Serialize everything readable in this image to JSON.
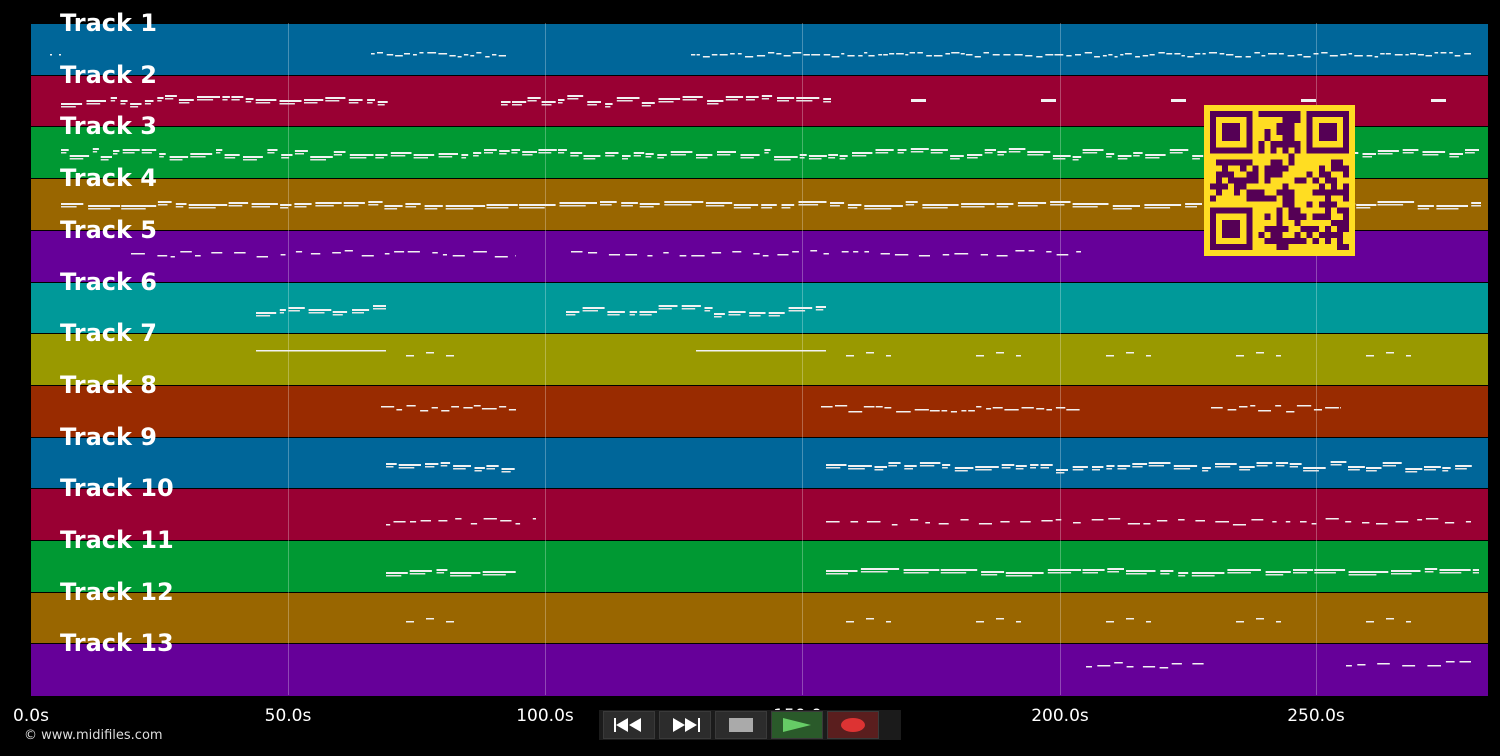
{
  "tracks": [
    {
      "name": "Track 1",
      "color": "#006699"
    },
    {
      "name": "Track 2",
      "color": "#990033"
    },
    {
      "name": "Track 3",
      "color": "#009933"
    },
    {
      "name": "Track 4",
      "color": "#996600"
    },
    {
      "name": "Track 5",
      "color": "#660099"
    },
    {
      "name": "Track 6",
      "color": "#009999"
    },
    {
      "name": "Track 7",
      "color": "#999900"
    },
    {
      "name": "Track 8",
      "color": "#992b00"
    },
    {
      "name": "Track 9",
      "color": "#006699"
    },
    {
      "name": "Track 10",
      "color": "#990033"
    },
    {
      "name": "Track 11",
      "color": "#009933"
    },
    {
      "name": "Track 12",
      "color": "#996600"
    },
    {
      "name": "Track 13",
      "color": "#660099"
    }
  ],
  "timeline": {
    "ticks": [
      "0.0s",
      "50.0s",
      "100.0s",
      "150.0s",
      "200.0s",
      "250.0s"
    ]
  },
  "transport": {
    "rewind_icon": "rewind-icon",
    "forward_icon": "fast-forward-icon",
    "stop_icon": "stop-icon",
    "play_icon": "play-icon",
    "record_icon": "record-icon"
  },
  "footer": {
    "copyright": "© www.midifiles.com"
  },
  "qr": {
    "icon": "qr-code-icon",
    "color": "#ffdd22",
    "dark": "#550055"
  }
}
